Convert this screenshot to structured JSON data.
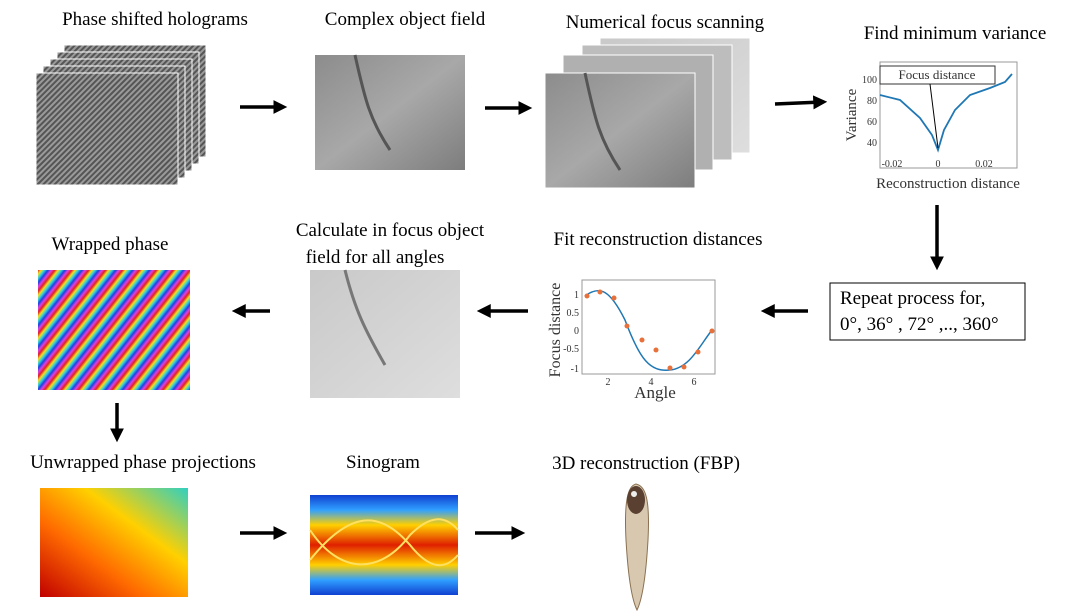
{
  "steps": {
    "holograms": "Phase shifted holograms",
    "complex": "Complex object field",
    "scanning": "Numerical focus scanning",
    "variance": "Find minimum variance",
    "repeat": [
      "Repeat process for,",
      "0°, 36° , 72° ,.., 360°"
    ],
    "fit": "Fit reconstruction distances",
    "calculate": [
      "Calculate in focus object",
      "field for all angles"
    ],
    "wrapped": "Wrapped phase",
    "unwrapped": "Unwrapped phase projections",
    "sinogram": "Sinogram",
    "reconstruction": "3D reconstruction (FBP)"
  },
  "variance_plot": {
    "ylabel": "Variance",
    "xlabel": "Reconstruction distance",
    "annotation": "Focus distance",
    "xticks": [
      "-0.02",
      "0",
      "0.02"
    ],
    "yticks": [
      "100",
      "80",
      "60",
      "40"
    ]
  },
  "fit_plot": {
    "ylabel": "Focus distance",
    "xlabel": "Angle",
    "xticks": [
      "2",
      "4",
      "6"
    ],
    "yticks": [
      "1",
      "0.5",
      "0",
      "-0.5",
      "-1"
    ]
  }
}
